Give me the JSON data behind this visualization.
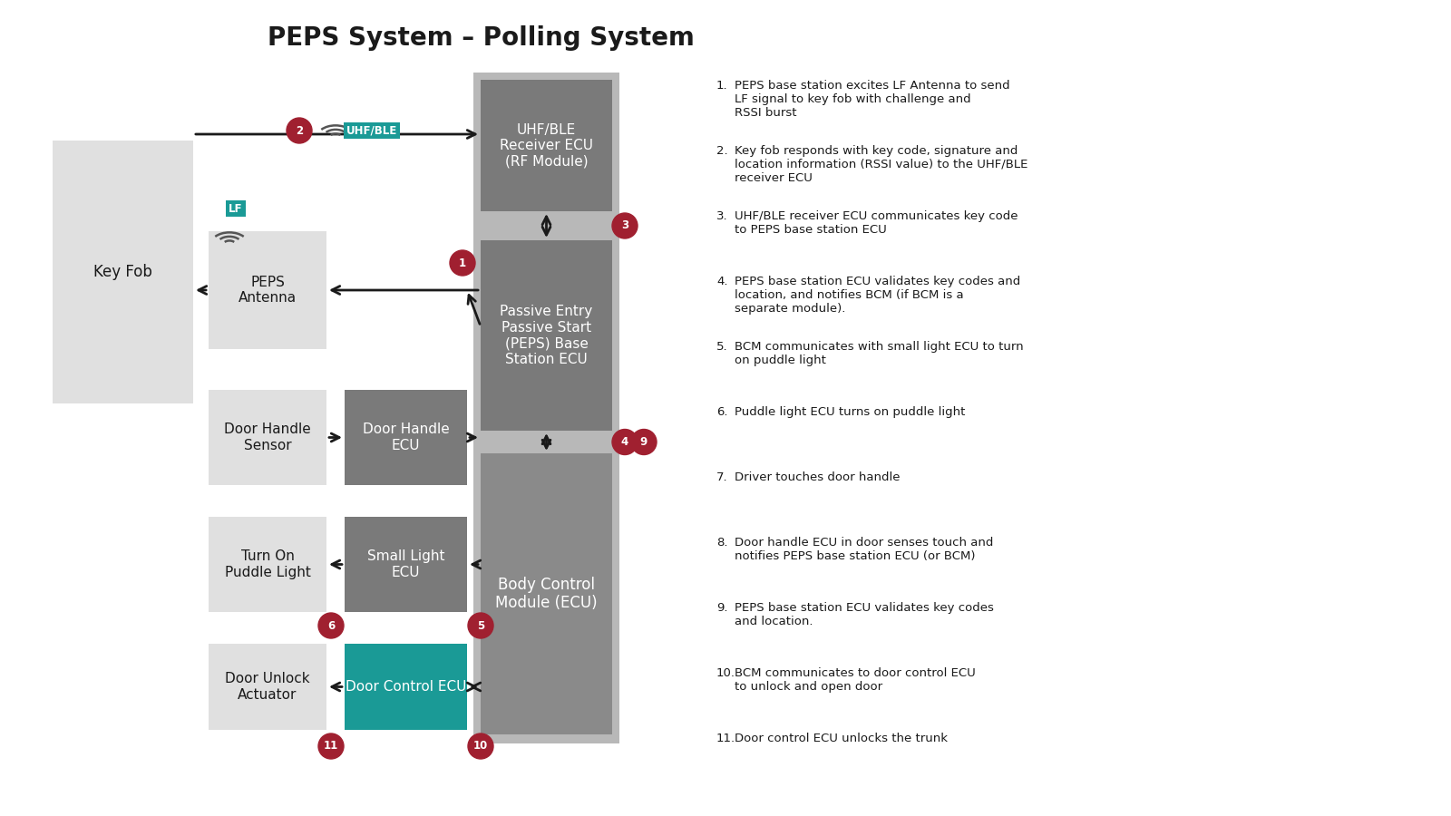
{
  "title": "PEPS System – Polling System",
  "title_fontsize": 20,
  "bg": "#ffffff",
  "c_light_gray": "#e0e0e0",
  "c_mid_gray": "#999999",
  "c_dark_gray": "#7a7a7a",
  "c_col_bg": "#c0c0c0",
  "c_teal": "#1a9a96",
  "c_red": "#a02030",
  "c_white": "#ffffff",
  "c_black": "#1a1a1a",
  "c_arrow": "#1a1a1a",
  "legend_items": [
    "PEPS base station excites LF Antenna to send\nLF signal to key fob with challenge and\nRSSI burst",
    "Key fob responds with key code, signature and\nlocation information (RSSI value) to the UHF/BLE\nreceiver ECU",
    "UHF/BLE receiver ECU communicates key code\nto PEPS base station ECU",
    "PEPS base station ECU validates key codes and\nlocation, and notifies BCM (if BCM is a\nseparate module).",
    "BCM communicates with small light ECU to turn\non puddle light",
    "Puddle light ECU turns on puddle light",
    "Driver touches door handle",
    "Door handle ECU in door senses touch and\nnotifies PEPS base station ECU (or BCM)",
    "PEPS base station ECU validates key codes\nand location.",
    "BCM communicates to door control ECU\nto unlock and open door",
    "Door control ECU unlocks the trunk"
  ]
}
